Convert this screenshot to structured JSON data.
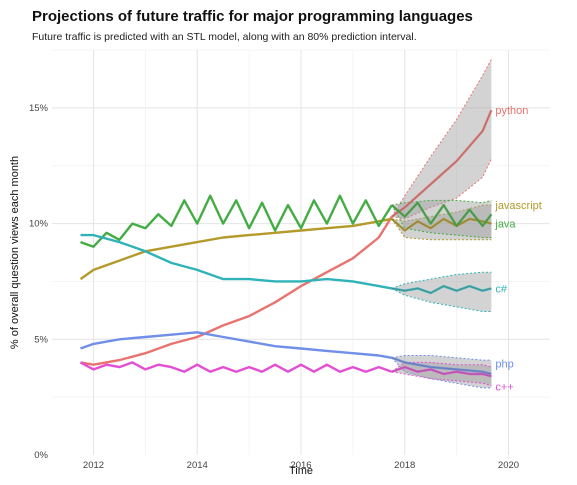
{
  "chart_data": {
    "type": "line",
    "title": "Projections of future traffic for major programming languages",
    "subtitle": "Future traffic is predicted with an STL model, along with an 80% prediction interval.",
    "xlabel": "Time",
    "ylabel": "% of overall question views each month",
    "xlim": [
      2011.2,
      2020.8
    ],
    "ylim": [
      0,
      17.5
    ],
    "x_ticks": [
      2012,
      2014,
      2016,
      2018,
      2020
    ],
    "x_tick_labels": [
      "2012",
      "2014",
      "2016",
      "2018",
      "2020"
    ],
    "y_ticks": [
      0,
      5,
      10,
      15
    ],
    "y_tick_labels": [
      "0%",
      "5%",
      "10%",
      "15%"
    ],
    "grid": true,
    "legend": "direct-labels-right",
    "series": [
      {
        "name": "python",
        "color": "#e8736f",
        "points": [
          [
            2011.75,
            4.0
          ],
          [
            2012.0,
            3.9
          ],
          [
            2012.5,
            4.1
          ],
          [
            2013.0,
            4.4
          ],
          [
            2013.5,
            4.8
          ],
          [
            2014.0,
            5.1
          ],
          [
            2014.5,
            5.6
          ],
          [
            2015.0,
            6.0
          ],
          [
            2015.5,
            6.6
          ],
          [
            2016.0,
            7.3
          ],
          [
            2016.5,
            7.9
          ],
          [
            2017.0,
            8.5
          ],
          [
            2017.5,
            9.4
          ],
          [
            2017.75,
            10.3
          ]
        ],
        "forecast": [
          [
            2017.75,
            10.3
          ],
          [
            2018.0,
            10.7
          ],
          [
            2018.5,
            11.7
          ],
          [
            2019.0,
            12.7
          ],
          [
            2019.5,
            14.0
          ],
          [
            2019.67,
            14.9
          ]
        ],
        "upper": [
          [
            2017.75,
            10.3
          ],
          [
            2018.0,
            11.2
          ],
          [
            2018.5,
            12.9
          ],
          [
            2019.0,
            14.5
          ],
          [
            2019.5,
            16.4
          ],
          [
            2019.67,
            17.1
          ]
        ],
        "lower": [
          [
            2017.75,
            10.3
          ],
          [
            2018.0,
            10.2
          ],
          [
            2018.5,
            10.7
          ],
          [
            2019.0,
            11.1
          ],
          [
            2019.5,
            12.0
          ],
          [
            2019.67,
            12.8
          ]
        ]
      },
      {
        "name": "javascript",
        "color": "#b39a2b",
        "points": [
          [
            2011.75,
            7.6
          ],
          [
            2012.0,
            8.0
          ],
          [
            2012.5,
            8.4
          ],
          [
            2013.0,
            8.8
          ],
          [
            2013.5,
            9.0
          ],
          [
            2014.0,
            9.2
          ],
          [
            2014.5,
            9.4
          ],
          [
            2015.0,
            9.5
          ],
          [
            2015.5,
            9.6
          ],
          [
            2016.0,
            9.7
          ],
          [
            2016.5,
            9.8
          ],
          [
            2017.0,
            9.9
          ],
          [
            2017.5,
            10.1
          ],
          [
            2017.75,
            10.2
          ]
        ],
        "forecast": [
          [
            2017.75,
            10.2
          ],
          [
            2018.0,
            9.7
          ],
          [
            2018.25,
            10.1
          ],
          [
            2018.5,
            9.8
          ],
          [
            2018.75,
            10.2
          ],
          [
            2019.0,
            9.9
          ],
          [
            2019.25,
            10.2
          ],
          [
            2019.5,
            10.1
          ],
          [
            2019.67,
            10.0
          ]
        ],
        "upper": [
          [
            2017.75,
            10.2
          ],
          [
            2018.0,
            10.1
          ],
          [
            2018.5,
            10.3
          ],
          [
            2019.0,
            10.5
          ],
          [
            2019.5,
            10.8
          ],
          [
            2019.67,
            10.8
          ]
        ],
        "lower": [
          [
            2017.75,
            10.2
          ],
          [
            2018.0,
            9.4
          ],
          [
            2018.5,
            9.3
          ],
          [
            2019.0,
            9.3
          ],
          [
            2019.5,
            9.3
          ],
          [
            2019.67,
            9.3
          ]
        ]
      },
      {
        "name": "java",
        "color": "#43ad43",
        "points": [
          [
            2011.75,
            9.2
          ],
          [
            2012.0,
            9.0
          ],
          [
            2012.25,
            9.6
          ],
          [
            2012.5,
            9.3
          ],
          [
            2012.75,
            10.0
          ],
          [
            2013.0,
            9.8
          ],
          [
            2013.25,
            10.4
          ],
          [
            2013.5,
            9.9
          ],
          [
            2013.75,
            11.0
          ],
          [
            2014.0,
            10.0
          ],
          [
            2014.25,
            11.2
          ],
          [
            2014.5,
            10.0
          ],
          [
            2014.75,
            11.0
          ],
          [
            2015.0,
            9.8
          ],
          [
            2015.25,
            10.9
          ],
          [
            2015.5,
            9.7
          ],
          [
            2015.75,
            10.8
          ],
          [
            2016.0,
            9.8
          ],
          [
            2016.25,
            11.0
          ],
          [
            2016.5,
            10.0
          ],
          [
            2016.75,
            11.2
          ],
          [
            2017.0,
            10.0
          ],
          [
            2017.25,
            11.0
          ],
          [
            2017.5,
            9.9
          ],
          [
            2017.75,
            10.8
          ]
        ],
        "forecast": [
          [
            2017.75,
            10.8
          ],
          [
            2018.0,
            10.3
          ],
          [
            2018.25,
            10.9
          ],
          [
            2018.5,
            10.0
          ],
          [
            2018.75,
            10.8
          ],
          [
            2019.0,
            9.9
          ],
          [
            2019.25,
            10.6
          ],
          [
            2019.5,
            9.9
          ],
          [
            2019.67,
            10.4
          ]
        ],
        "upper": [
          [
            2017.75,
            10.8
          ],
          [
            2018.0,
            10.9
          ],
          [
            2018.5,
            11.0
          ],
          [
            2019.0,
            11.0
          ],
          [
            2019.5,
            10.9
          ],
          [
            2019.67,
            11.0
          ]
        ],
        "lower": [
          [
            2017.75,
            10.8
          ],
          [
            2018.0,
            9.8
          ],
          [
            2018.5,
            9.6
          ],
          [
            2019.0,
            9.5
          ],
          [
            2019.5,
            9.4
          ],
          [
            2019.67,
            9.4
          ]
        ]
      },
      {
        "name": "c#",
        "color": "#2fb3b8",
        "points": [
          [
            2011.75,
            9.5
          ],
          [
            2012.0,
            9.5
          ],
          [
            2012.5,
            9.2
          ],
          [
            2013.0,
            8.8
          ],
          [
            2013.5,
            8.3
          ],
          [
            2014.0,
            8.0
          ],
          [
            2014.5,
            7.6
          ],
          [
            2015.0,
            7.6
          ],
          [
            2015.5,
            7.5
          ],
          [
            2016.0,
            7.5
          ],
          [
            2016.5,
            7.6
          ],
          [
            2017.0,
            7.5
          ],
          [
            2017.5,
            7.3
          ],
          [
            2017.75,
            7.2
          ]
        ],
        "forecast": [
          [
            2017.75,
            7.2
          ],
          [
            2018.0,
            7.1
          ],
          [
            2018.25,
            7.2
          ],
          [
            2018.5,
            7.0
          ],
          [
            2018.75,
            7.3
          ],
          [
            2019.0,
            7.1
          ],
          [
            2019.25,
            7.3
          ],
          [
            2019.5,
            7.1
          ],
          [
            2019.67,
            7.2
          ]
        ],
        "upper": [
          [
            2017.75,
            7.2
          ],
          [
            2018.0,
            7.4
          ],
          [
            2018.5,
            7.6
          ],
          [
            2019.0,
            7.8
          ],
          [
            2019.5,
            7.9
          ],
          [
            2019.67,
            7.9
          ]
        ],
        "lower": [
          [
            2017.75,
            7.2
          ],
          [
            2018.0,
            6.9
          ],
          [
            2018.5,
            6.6
          ],
          [
            2019.0,
            6.4
          ],
          [
            2019.5,
            6.2
          ],
          [
            2019.67,
            6.2
          ]
        ]
      },
      {
        "name": "php",
        "color": "#6f8fe8",
        "points": [
          [
            2011.75,
            4.6
          ],
          [
            2012.0,
            4.8
          ],
          [
            2012.5,
            5.0
          ],
          [
            2013.0,
            5.1
          ],
          [
            2013.5,
            5.2
          ],
          [
            2014.0,
            5.3
          ],
          [
            2014.5,
            5.1
          ],
          [
            2015.0,
            4.9
          ],
          [
            2015.5,
            4.7
          ],
          [
            2016.0,
            4.6
          ],
          [
            2016.5,
            4.5
          ],
          [
            2017.0,
            4.4
          ],
          [
            2017.5,
            4.3
          ],
          [
            2017.75,
            4.2
          ]
        ],
        "forecast": [
          [
            2017.75,
            4.2
          ],
          [
            2018.0,
            4.0
          ],
          [
            2018.5,
            3.8
          ],
          [
            2019.0,
            3.7
          ],
          [
            2019.5,
            3.6
          ],
          [
            2019.67,
            3.5
          ]
        ],
        "upper": [
          [
            2017.75,
            4.2
          ],
          [
            2018.0,
            4.3
          ],
          [
            2018.5,
            4.3
          ],
          [
            2019.0,
            4.2
          ],
          [
            2019.5,
            4.1
          ],
          [
            2019.67,
            4.1
          ]
        ],
        "lower": [
          [
            2017.75,
            4.2
          ],
          [
            2018.0,
            3.6
          ],
          [
            2018.5,
            3.3
          ],
          [
            2019.0,
            3.1
          ],
          [
            2019.5,
            2.9
          ],
          [
            2019.67,
            2.9
          ]
        ]
      },
      {
        "name": "c++",
        "color": "#e34fd3",
        "points": [
          [
            2011.75,
            4.0
          ],
          [
            2012.0,
            3.7
          ],
          [
            2012.25,
            3.9
          ],
          [
            2012.5,
            3.8
          ],
          [
            2012.75,
            4.0
          ],
          [
            2013.0,
            3.7
          ],
          [
            2013.25,
            3.9
          ],
          [
            2013.5,
            3.8
          ],
          [
            2013.75,
            3.6
          ],
          [
            2014.0,
            3.9
          ],
          [
            2014.25,
            3.6
          ],
          [
            2014.5,
            3.8
          ],
          [
            2014.75,
            3.6
          ],
          [
            2015.0,
            3.8
          ],
          [
            2015.25,
            3.6
          ],
          [
            2015.5,
            3.9
          ],
          [
            2015.75,
            3.6
          ],
          [
            2016.0,
            3.9
          ],
          [
            2016.25,
            3.6
          ],
          [
            2016.5,
            3.9
          ],
          [
            2016.75,
            3.6
          ],
          [
            2017.0,
            3.8
          ],
          [
            2017.25,
            3.6
          ],
          [
            2017.5,
            3.8
          ],
          [
            2017.75,
            3.6
          ]
        ],
        "forecast": [
          [
            2017.75,
            3.6
          ],
          [
            2018.0,
            3.8
          ],
          [
            2018.25,
            3.6
          ],
          [
            2018.5,
            3.7
          ],
          [
            2018.75,
            3.5
          ],
          [
            2019.0,
            3.6
          ],
          [
            2019.25,
            3.5
          ],
          [
            2019.5,
            3.5
          ],
          [
            2019.67,
            3.4
          ]
        ],
        "upper": [
          [
            2017.75,
            3.6
          ],
          [
            2018.0,
            4.0
          ],
          [
            2018.5,
            4.0
          ],
          [
            2019.0,
            3.9
          ],
          [
            2019.5,
            3.9
          ],
          [
            2019.67,
            3.8
          ]
        ],
        "lower": [
          [
            2017.75,
            3.6
          ],
          [
            2018.0,
            3.5
          ],
          [
            2018.5,
            3.3
          ],
          [
            2019.0,
            3.2
          ],
          [
            2019.5,
            3.1
          ],
          [
            2019.67,
            3.0
          ]
        ]
      }
    ]
  }
}
